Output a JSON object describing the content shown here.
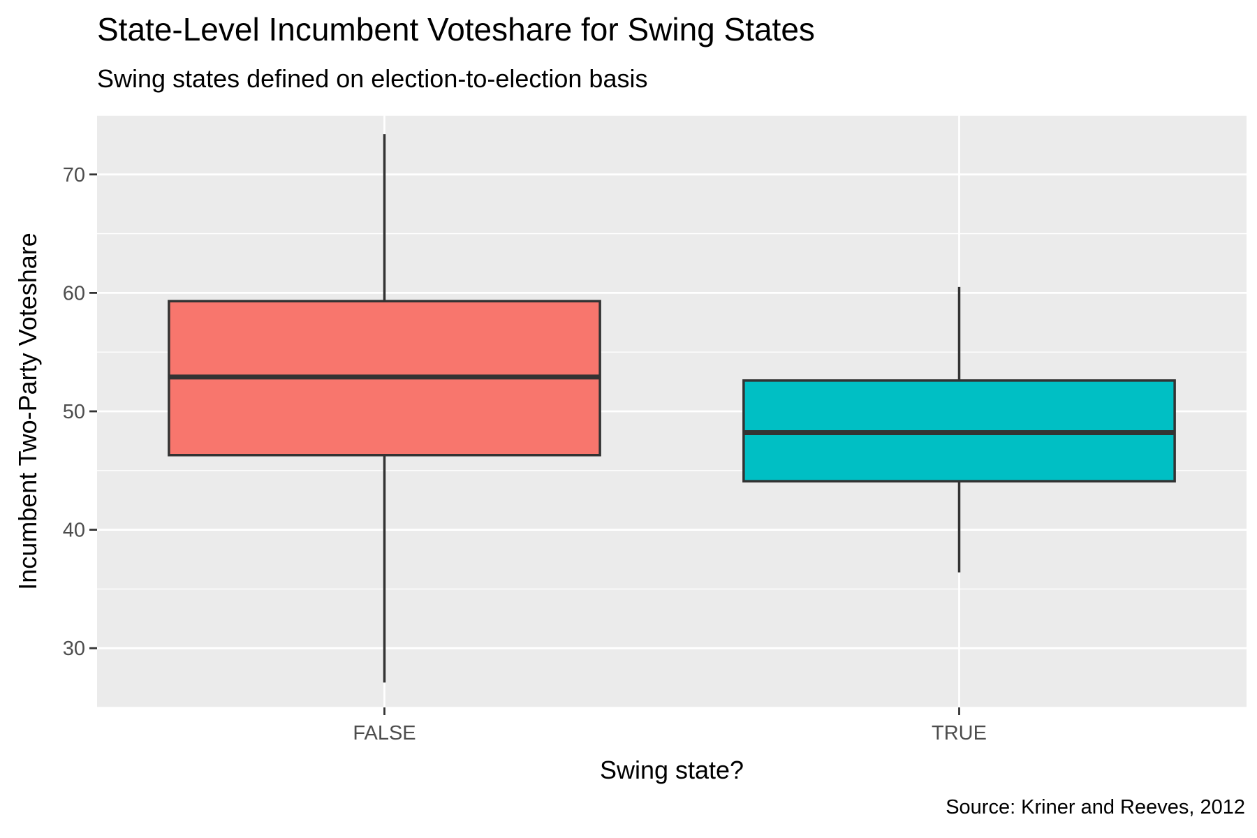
{
  "header": {
    "title": "State-Level Incumbent Voteshare for Swing States",
    "subtitle": "Swing states defined on election-to-election basis",
    "caption": "Source: Kriner and Reeves, 2012"
  },
  "chart_data": {
    "type": "boxplot",
    "title": "State-Level Incumbent Voteshare for Swing States",
    "subtitle": "Swing states defined on election-to-election basis",
    "xlabel": "Swing state?",
    "ylabel": "Incumbent Two-Party Voteshare",
    "caption": "Source: Kriner and Reeves, 2012",
    "categories": [
      "FALSE",
      "TRUE"
    ],
    "ylim": [
      25,
      75
    ],
    "yticks": [
      30,
      40,
      50,
      60,
      70
    ],
    "grid": true,
    "legend": "none",
    "boxes": [
      {
        "category": "FALSE",
        "min": 27.1,
        "q1": 46.3,
        "median": 52.9,
        "q3": 59.3,
        "max": 73.4,
        "fill": "#F8766D"
      },
      {
        "category": "TRUE",
        "min": 36.4,
        "q1": 44.1,
        "median": 48.2,
        "q3": 52.6,
        "max": 60.5,
        "fill": "#00BFC4"
      }
    ],
    "colors": {
      "panel": "#EBEBEB",
      "grid": "#FFFFFF",
      "outline": "#333333",
      "tick_text": "#4D4D4D"
    }
  }
}
